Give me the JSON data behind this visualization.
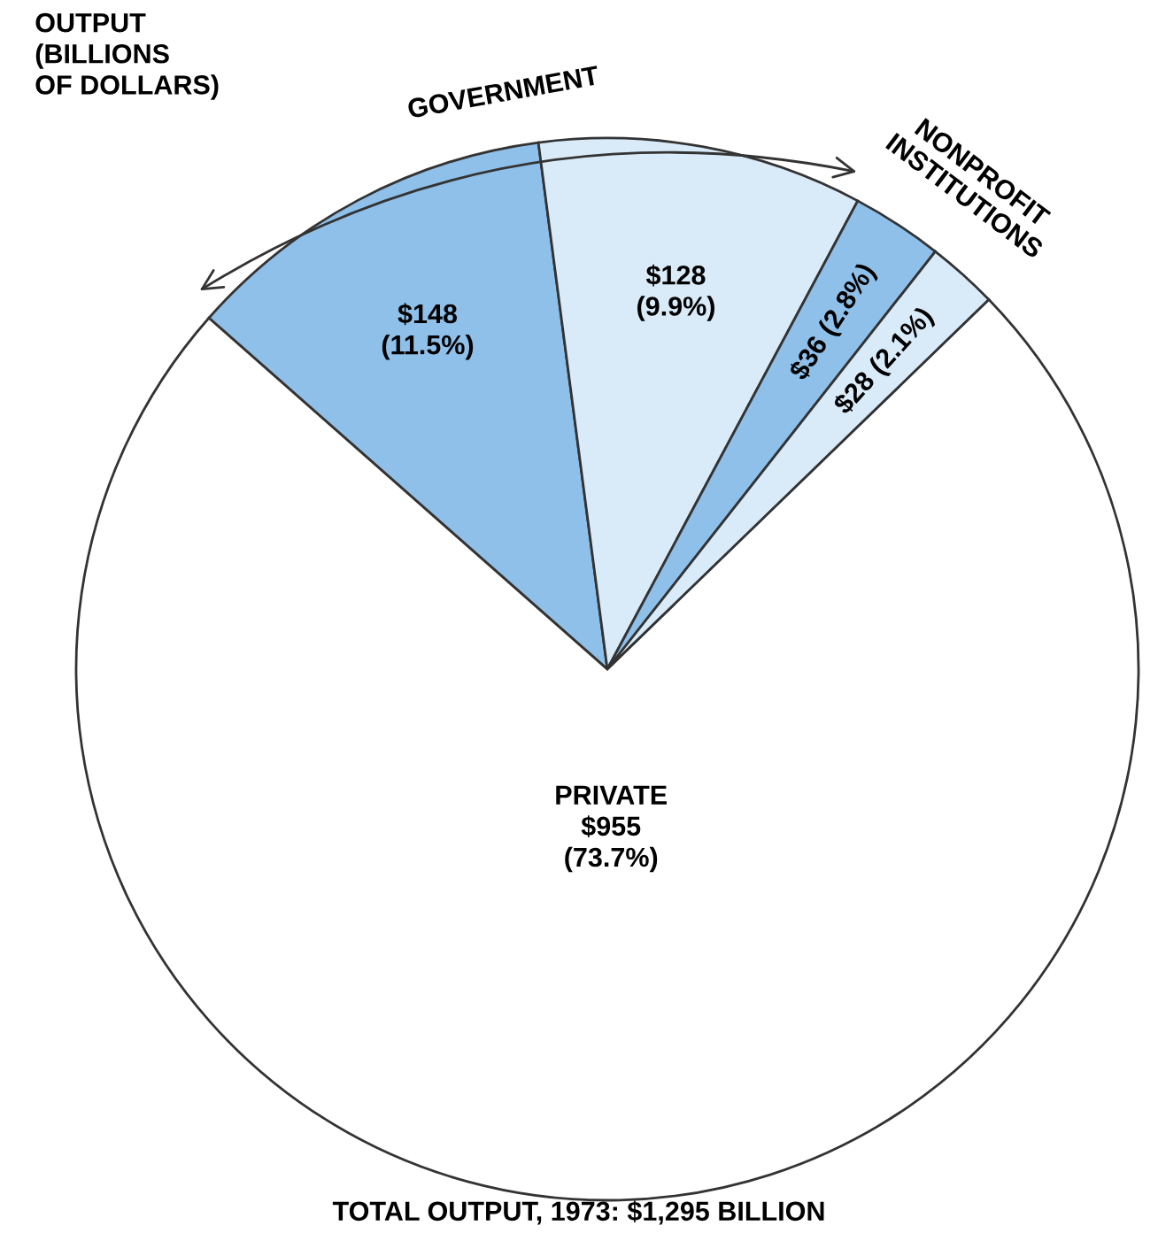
{
  "chart_data": {
    "type": "pie",
    "title": "OUTPUT\n(BILLIONS\nOF DOLLARS)",
    "categories": [
      null,
      null,
      null,
      null,
      "PRIVATE"
    ],
    "values": [
      148,
      128,
      36,
      28,
      955
    ],
    "colors": [
      "#8fc0ea",
      "#d9ebf9",
      "#8fc0ea",
      "#d9ebf9",
      "#ffffff"
    ],
    "value_labels": [
      "$148\n(11.5%)",
      "$128\n(9.9%)",
      "$36 (2.8%)",
      "$28 (2.1%)",
      "$955\n(73.7%)"
    ],
    "annotations": [
      "GOVERNMENT",
      "NONPROFIT\nINSTITUTIONS",
      "TOTAL OUTPUT, 1973: $1,295 BILLION"
    ]
  }
}
